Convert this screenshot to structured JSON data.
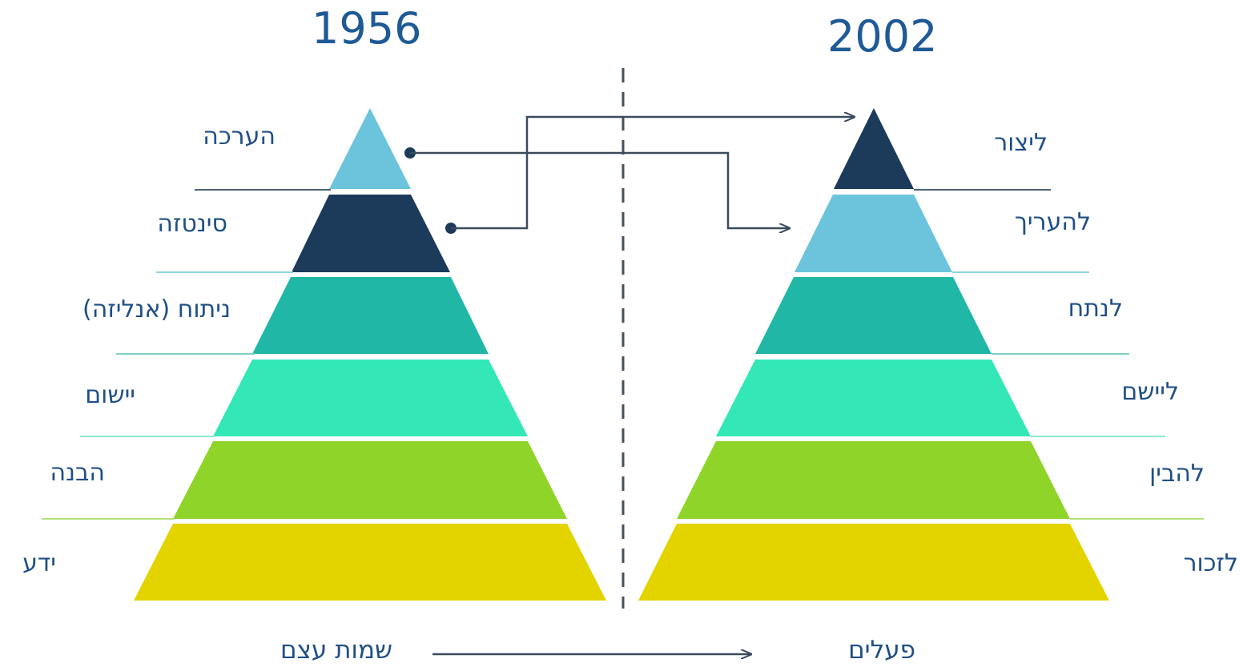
{
  "left_pyramid": {
    "year": "1956",
    "levels": [
      "הערכה",
      "סינטזה",
      "ניתוח (אנליזה)",
      "יישום",
      "הבנה",
      "ידע"
    ],
    "colors": [
      "#6bc4dc",
      "#1c3a5a",
      "#21b7a6",
      "#33e8b6",
      "#8fd428",
      "#e3d400"
    ]
  },
  "right_pyramid": {
    "year": "2002",
    "levels": [
      "ליצור",
      "להעריך",
      "לנתח",
      "ליישם",
      "להבין",
      "לזכור"
    ],
    "colors": [
      "#1c3a5a",
      "#6bc4dc",
      "#21b7a6",
      "#33e8b6",
      "#8fd428",
      "#e3d400"
    ]
  },
  "footer": {
    "left_label": "שמות עצם",
    "right_label": "פעלים"
  },
  "colors": {
    "text": "#1f4f86",
    "connector": "#3b4a5c"
  }
}
